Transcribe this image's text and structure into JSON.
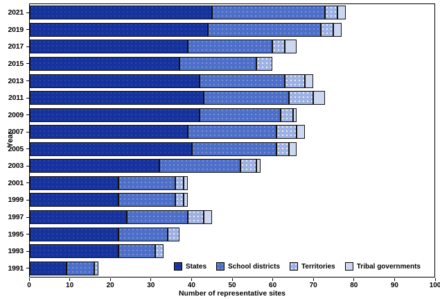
{
  "figure": {
    "x_axis_title": "Number of representative sites",
    "y_axis_title": "Year",
    "x_ticks": [
      0,
      10,
      20,
      30,
      40,
      50,
      60,
      70,
      80,
      90,
      100
    ],
    "colors": {
      "states": "#16329c",
      "school_districts": "#4d6fc9",
      "territories": "#9db1e2",
      "tribal_governments": "#cdd7ef",
      "border": "#111111"
    }
  },
  "chart_data": {
    "type": "bar",
    "orientation": "horizontal",
    "stacked": true,
    "title": "",
    "xlabel": "Number of representative sites",
    "ylabel": "Year",
    "xlim": [
      0,
      100
    ],
    "grid": false,
    "legend_position": "bottom-right-inside",
    "categories": [
      "2021",
      "2019",
      "2017",
      "2015",
      "2013",
      "2011",
      "2009",
      "2007",
      "2005",
      "2003",
      "2001",
      "1999",
      "1997",
      "1995",
      "1993",
      "1991"
    ],
    "series": [
      {
        "name": "States",
        "values": [
          45,
          44,
          39,
          37,
          42,
          43,
          42,
          39,
          40,
          32,
          22,
          22,
          24,
          22,
          22,
          9
        ]
      },
      {
        "name": "School districts",
        "values": [
          28,
          28,
          21,
          19,
          21,
          21,
          20,
          22,
          21,
          20,
          14,
          14,
          15,
          12,
          9,
          7
        ]
      },
      {
        "name": "Territories",
        "values": [
          3,
          3,
          3,
          4,
          5,
          6,
          3,
          5,
          3,
          4,
          2,
          2,
          4,
          3,
          2,
          1
        ]
      },
      {
        "name": "Tribal governments",
        "values": [
          2,
          2,
          3,
          0,
          2,
          3,
          1,
          2,
          2,
          1,
          1,
          1,
          2,
          0,
          0,
          0
        ]
      }
    ],
    "totals": [
      78,
      77,
      66,
      60,
      70,
      73,
      66,
      68,
      66,
      57,
      39,
      39,
      45,
      37,
      33,
      17
    ]
  },
  "legend": {
    "items": [
      {
        "label": "States"
      },
      {
        "label": "School districts"
      },
      {
        "label": "Territories"
      },
      {
        "label": "Tribal governments"
      }
    ]
  }
}
